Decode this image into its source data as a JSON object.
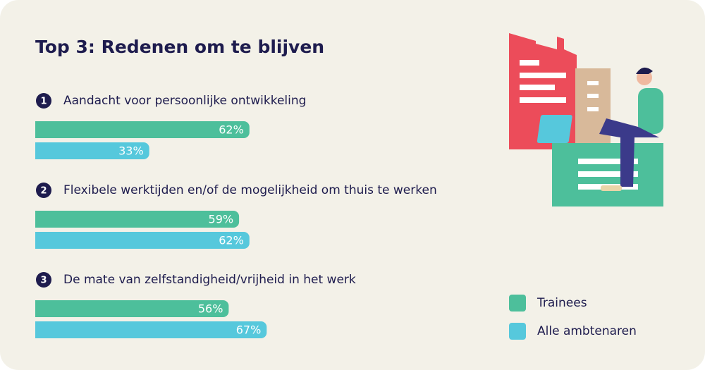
{
  "chart_data": {
    "type": "bar",
    "orientation": "horizontal",
    "title": "Top 3: Redenen om te blijven",
    "ranks": [
      "1",
      "2",
      "3"
    ],
    "categories": [
      "Aandacht voor persoonlijke ontwikkeling",
      "Flexibele werktijden en/of de mogelijkheid om thuis te werken",
      "De mate van zelfstandigheid/vrijheid in het werk"
    ],
    "series": [
      {
        "name": "Trainees",
        "color": "#4dbf9b",
        "values": [
          62,
          59,
          56
        ],
        "value_labels": [
          "62%",
          "59%",
          "56%"
        ]
      },
      {
        "name": "Alle ambtenaren",
        "color": "#56c8dc",
        "values": [
          33,
          62,
          67
        ],
        "value_labels": [
          "33%",
          "62%",
          "67%"
        ]
      }
    ],
    "legend": "bottom-right"
  }
}
